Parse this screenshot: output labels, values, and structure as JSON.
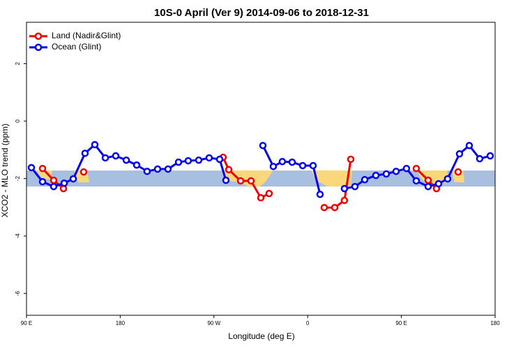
{
  "chart_data": {
    "type": "line",
    "title": "10S-0 April (Ver 9)   2014-09-06 to 2018-12-31",
    "x_label": "Longitude (deg E)",
    "y_label": "XCO2 - MLO trend (ppm)",
    "xlim": [
      90,
      540
    ],
    "ylim": [
      -6.76,
      3.44
    ],
    "xticks": [
      {
        "value": 90,
        "label": "90 E"
      },
      180,
      {
        "value": 270,
        "label": "90 W"
      },
      {
        "value": 360,
        "label": "0"
      },
      {
        "value": 450,
        "label": "90 E"
      },
      {
        "value": 540,
        "label": "180"
      }
    ],
    "yticks": [
      2,
      0,
      -2,
      -4,
      -6
    ],
    "legend": "top-left",
    "series": [
      {
        "name": "Land (Nadir&Glint)",
        "color": "#ee0000",
        "x": [
          105.4,
          116.1,
          125.5,
          135.2,
          144.9,
          211.9,
          278.8,
          284.2,
          295.6,
          305.6,
          315.0,
          323.0,
          349.5,
          375.9,
          386.0,
          395.3,
          401.4,
          432.9,
          464.3,
          475.7,
          483.7,
          494.1,
          504.5
        ],
        "values": [
          -1.65,
          -2.06,
          -2.35,
          null,
          -1.77,
          null,
          -1.26,
          -1.69,
          -2.08,
          -2.08,
          -2.67,
          -2.52,
          null,
          -3.01,
          -3.01,
          -2.76,
          -1.33,
          null,
          -1.65,
          -2.06,
          -2.35,
          null,
          -1.77
        ]
      },
      {
        "name": "Ocean (Glint)",
        "color": "#0000ee",
        "x": [
          94.7,
          105.4,
          116.1,
          126.2,
          134.9,
          146.2,
          155.6,
          165.7,
          175.7,
          185.8,
          195.8,
          205.8,
          215.9,
          225.9,
          236.0,
          245.3,
          255.4,
          265.4,
          275.5,
          281.5,
          299.3,
          317.0,
          327.0,
          335.7,
          345.1,
          355.2,
          365.2,
          371.9,
          383.6,
          395.3,
          405.4,
          414.8,
          425.5,
          435.5,
          444.9,
          454.9,
          464.3,
          475.7,
          485.7,
          494.4,
          505.8,
          515.2,
          525.2,
          535.3
        ],
        "values": [
          -1.62,
          -2.11,
          -2.28,
          -2.16,
          -2.01,
          -1.12,
          -0.82,
          -1.28,
          -1.21,
          -1.36,
          -1.53,
          -1.75,
          -1.67,
          -1.67,
          -1.43,
          -1.38,
          -1.36,
          -1.28,
          -1.33,
          -2.06,
          null,
          -0.85,
          -1.58,
          -1.41,
          -1.43,
          -1.55,
          -1.55,
          -2.55,
          null,
          -2.35,
          -2.28,
          -2.04,
          -1.89,
          -1.84,
          -1.75,
          -1.65,
          -2.08,
          -2.28,
          -2.18,
          -2.01,
          -1.14,
          -0.85,
          -1.31,
          -1.21
        ]
      }
    ]
  }
}
